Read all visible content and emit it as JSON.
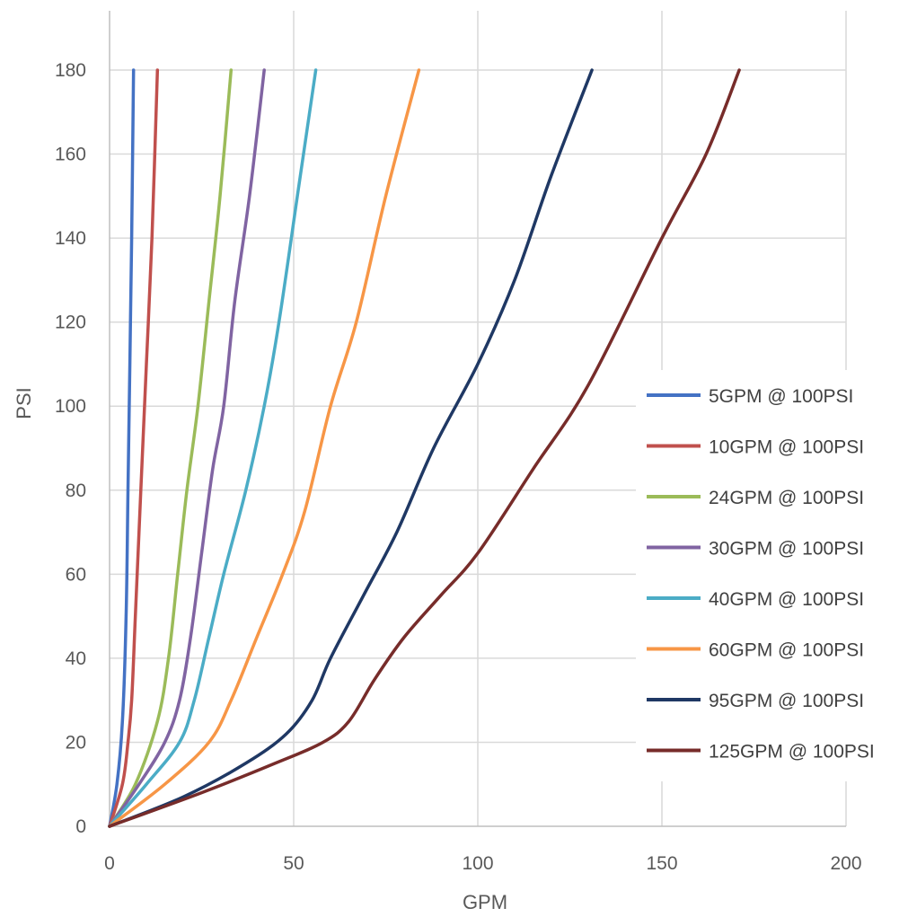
{
  "chart_data": {
    "type": "line",
    "title": "",
    "xlabel": "GPM",
    "ylabel": "PSI",
    "xlim": [
      0,
      200
    ],
    "ylim": [
      0,
      180
    ],
    "xticks": [
      "0",
      "50",
      "100",
      "150",
      "200"
    ],
    "yticks": [
      "0",
      "20",
      "40",
      "60",
      "80",
      "100",
      "120",
      "140",
      "160",
      "180"
    ],
    "grid": true,
    "legend_position": "right",
    "series": [
      {
        "name": "5GPM @ 100PSI",
        "color": "#4472C4",
        "points": [
          [
            0,
            0
          ],
          [
            2,
            10
          ],
          [
            3.5,
            25
          ],
          [
            4.5,
            50
          ],
          [
            5,
            80
          ],
          [
            5.5,
            110
          ],
          [
            6,
            140
          ],
          [
            6.5,
            180
          ]
        ]
      },
      {
        "name": "10GPM @ 100PSI",
        "color": "#C0504D",
        "points": [
          [
            0,
            0
          ],
          [
            3.5,
            10
          ],
          [
            5,
            20
          ],
          [
            6,
            30
          ],
          [
            7,
            50
          ],
          [
            8.5,
            80
          ],
          [
            10,
            110
          ],
          [
            11.5,
            140
          ],
          [
            13,
            180
          ]
        ]
      },
      {
        "name": "24GPM @ 100PSI",
        "color": "#9BBB59",
        "points": [
          [
            0,
            0
          ],
          [
            7,
            10
          ],
          [
            13,
            25
          ],
          [
            16,
            40
          ],
          [
            18.5,
            60
          ],
          [
            21,
            80
          ],
          [
            24,
            100
          ],
          [
            27,
            125
          ],
          [
            30,
            150
          ],
          [
            33,
            180
          ]
        ]
      },
      {
        "name": "30GPM @ 100PSI",
        "color": "#8064A2",
        "points": [
          [
            0,
            0
          ],
          [
            8,
            10
          ],
          [
            15,
            20
          ],
          [
            19,
            30
          ],
          [
            22,
            45
          ],
          [
            25,
            65
          ],
          [
            28,
            85
          ],
          [
            31,
            100
          ],
          [
            34,
            125
          ],
          [
            38,
            150
          ],
          [
            42,
            180
          ]
        ]
      },
      {
        "name": "40GPM @ 100PSI",
        "color": "#4BACC6",
        "points": [
          [
            0,
            0
          ],
          [
            10,
            10
          ],
          [
            19,
            20
          ],
          [
            23,
            30
          ],
          [
            27,
            45
          ],
          [
            31,
            60
          ],
          [
            37,
            80
          ],
          [
            42,
            100
          ],
          [
            46,
            120
          ],
          [
            51,
            150
          ],
          [
            56,
            180
          ]
        ]
      },
      {
        "name": "60GPM @ 100PSI",
        "color": "#F79646",
        "points": [
          [
            0,
            0
          ],
          [
            15,
            10
          ],
          [
            27,
            20
          ],
          [
            33,
            30
          ],
          [
            40,
            45
          ],
          [
            47,
            60
          ],
          [
            53,
            75
          ],
          [
            60,
            100
          ],
          [
            67,
            120
          ],
          [
            75,
            150
          ],
          [
            84,
            180
          ]
        ]
      },
      {
        "name": "95GPM @ 100PSI",
        "color": "#1F3864",
        "points": [
          [
            0,
            0
          ],
          [
            20,
            7
          ],
          [
            37,
            15
          ],
          [
            48,
            22
          ],
          [
            55,
            30
          ],
          [
            60,
            40
          ],
          [
            69,
            55
          ],
          [
            78,
            70
          ],
          [
            88,
            90
          ],
          [
            100,
            110
          ],
          [
            110,
            130
          ],
          [
            120,
            155
          ],
          [
            131,
            180
          ]
        ]
      },
      {
        "name": "125GPM @ 100PSI",
        "color": "#772C2A",
        "points": [
          [
            0,
            0
          ],
          [
            25,
            8
          ],
          [
            45,
            15
          ],
          [
            58,
            20
          ],
          [
            65,
            25
          ],
          [
            72,
            35
          ],
          [
            80,
            45
          ],
          [
            90,
            55
          ],
          [
            100,
            65
          ],
          [
            115,
            85
          ],
          [
            130,
            105
          ],
          [
            150,
            140
          ],
          [
            162,
            160
          ],
          [
            171,
            180
          ]
        ]
      }
    ]
  }
}
